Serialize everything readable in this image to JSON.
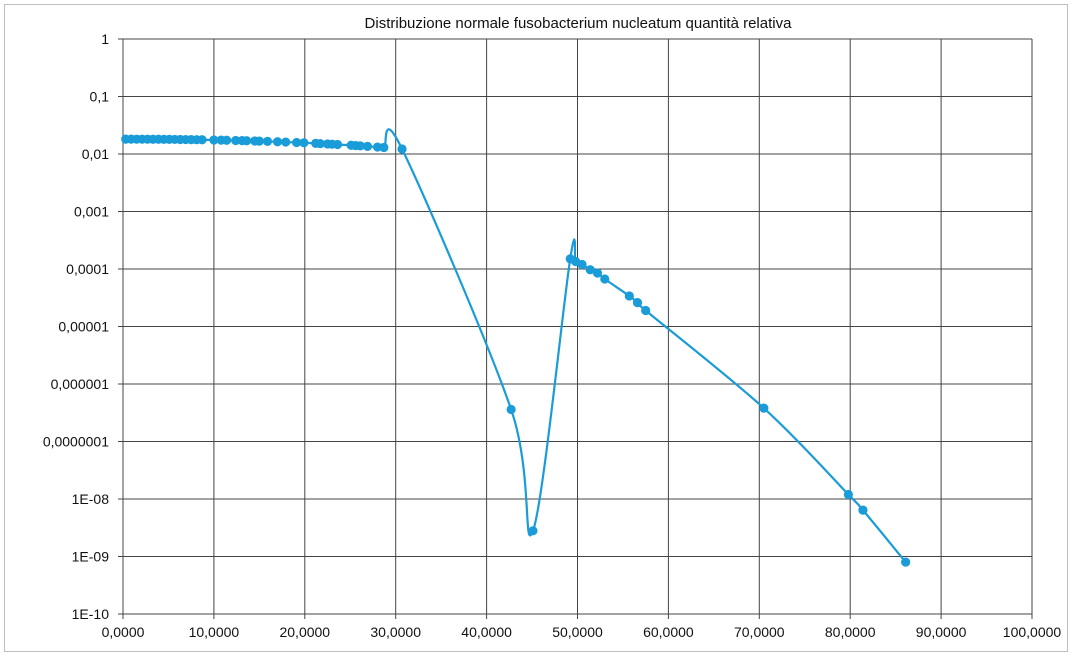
{
  "chart_data": {
    "type": "scatter",
    "title": "Distribuzione normale fusobacterium nucleatum quantità relativa",
    "xlabel": "",
    "ylabel": "",
    "xlim": [
      0,
      100
    ],
    "ylim": [
      1e-10,
      1
    ],
    "y_scale": "log",
    "grid": true,
    "legend": "none",
    "series_color": "#1a9cd8",
    "x_tick_labels": [
      "0,0000",
      "10,0000",
      "20,0000",
      "30,0000",
      "40,0000",
      "50,0000",
      "60,0000",
      "70,0000",
      "80,0000",
      "90,0000",
      "100,0000"
    ],
    "y_tick_labels": [
      "1",
      "0,1",
      "0,01",
      "0,001",
      "0,0001",
      "0,00001",
      "0,000001",
      "0,0000001",
      "1E-08",
      "1E-09",
      "1E-10"
    ],
    "series": [
      {
        "points": [
          {
            "x": 0.3,
            "y": 0.01812
          },
          {
            "x": 0.9,
            "y": 0.01812
          },
          {
            "x": 1.5,
            "y": 0.01811
          },
          {
            "x": 2.1,
            "y": 0.0181
          },
          {
            "x": 2.7,
            "y": 0.01808
          },
          {
            "x": 3.3,
            "y": 0.01806
          },
          {
            "x": 3.9,
            "y": 0.01803
          },
          {
            "x": 4.5,
            "y": 0.018
          },
          {
            "x": 5.1,
            "y": 0.01797
          },
          {
            "x": 5.7,
            "y": 0.01793
          },
          {
            "x": 6.3,
            "y": 0.01789
          },
          {
            "x": 6.9,
            "y": 0.01784
          },
          {
            "x": 7.5,
            "y": 0.01779
          },
          {
            "x": 8.1,
            "y": 0.01773
          },
          {
            "x": 8.7,
            "y": 0.01767
          },
          {
            "x": 10.0,
            "y": 0.01752
          },
          {
            "x": 10.8,
            "y": 0.01742
          },
          {
            "x": 11.4,
            "y": 0.01734
          },
          {
            "x": 12.4,
            "y": 0.01719
          },
          {
            "x": 13.1,
            "y": 0.01708
          },
          {
            "x": 13.6,
            "y": 0.017
          },
          {
            "x": 14.5,
            "y": 0.01684
          },
          {
            "x": 15.0,
            "y": 0.01675
          },
          {
            "x": 15.9,
            "y": 0.01657
          },
          {
            "x": 17.0,
            "y": 0.01634
          },
          {
            "x": 17.9,
            "y": 0.01614
          },
          {
            "x": 19.1,
            "y": 0.01586
          },
          {
            "x": 19.9,
            "y": 0.01566
          },
          {
            "x": 21.2,
            "y": 0.01532
          },
          {
            "x": 21.7,
            "y": 0.01518
          },
          {
            "x": 22.5,
            "y": 0.01496
          },
          {
            "x": 23.0,
            "y": 0.01482
          },
          {
            "x": 23.6,
            "y": 0.01464
          },
          {
            "x": 25.1,
            "y": 0.01418
          },
          {
            "x": 25.6,
            "y": 0.01402
          },
          {
            "x": 26.1,
            "y": 0.01386
          },
          {
            "x": 26.9,
            "y": 0.01359
          },
          {
            "x": 28.0,
            "y": 0.01321
          },
          {
            "x": 28.7,
            "y": 0.01297
          },
          {
            "x": 30.7,
            "y": 0.01223
          },
          {
            "x": 42.7,
            "y": 3.6e-07
          },
          {
            "x": 45.1,
            "y": 2.8e-09
          },
          {
            "x": 49.2,
            "y": 0.00015
          },
          {
            "x": 49.8,
            "y": 0.000135
          },
          {
            "x": 50.5,
            "y": 0.00012
          },
          {
            "x": 51.4,
            "y": 9.7e-05
          },
          {
            "x": 52.2,
            "y": 8.5e-05
          },
          {
            "x": 53.0,
            "y": 6.7e-05
          },
          {
            "x": 55.7,
            "y": 3.4e-05
          },
          {
            "x": 56.6,
            "y": 2.6e-05
          },
          {
            "x": 57.5,
            "y": 1.9e-05
          },
          {
            "x": 70.5,
            "y": 3.8e-07
          },
          {
            "x": 79.8,
            "y": 1.2e-08
          },
          {
            "x": 81.4,
            "y": 6.4e-09
          },
          {
            "x": 86.1,
            "y": 8e-10
          }
        ]
      }
    ]
  }
}
